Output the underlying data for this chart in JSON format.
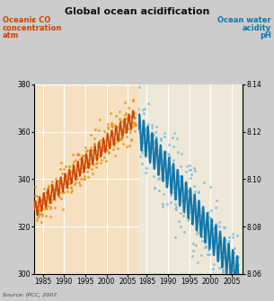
{
  "title": "Global ocean acidification",
  "source_text": "Source: IPCC, 2007.",
  "left_color": "#CC4400",
  "left_scatter_color": "#E8921A",
  "right_color": "#1177AA",
  "right_scatter_color": "#77BBDD",
  "bg_color_left": "#F5E0C0",
  "bg_color_right": "#EEE8D8",
  "grid_color": "#FFFFFF",
  "fig_bg": "#CCCCCC",
  "left_ylim": [
    300,
    380
  ],
  "right_ylim": [
    8.06,
    8.14
  ],
  "left_yticks": [
    300,
    320,
    340,
    360,
    380
  ],
  "right_yticks": [
    8.06,
    8.08,
    8.1,
    8.12,
    8.14
  ],
  "xticks": [
    1985,
    1990,
    1995,
    2000,
    2005
  ],
  "xlim": [
    1983.0,
    2007.5
  ]
}
